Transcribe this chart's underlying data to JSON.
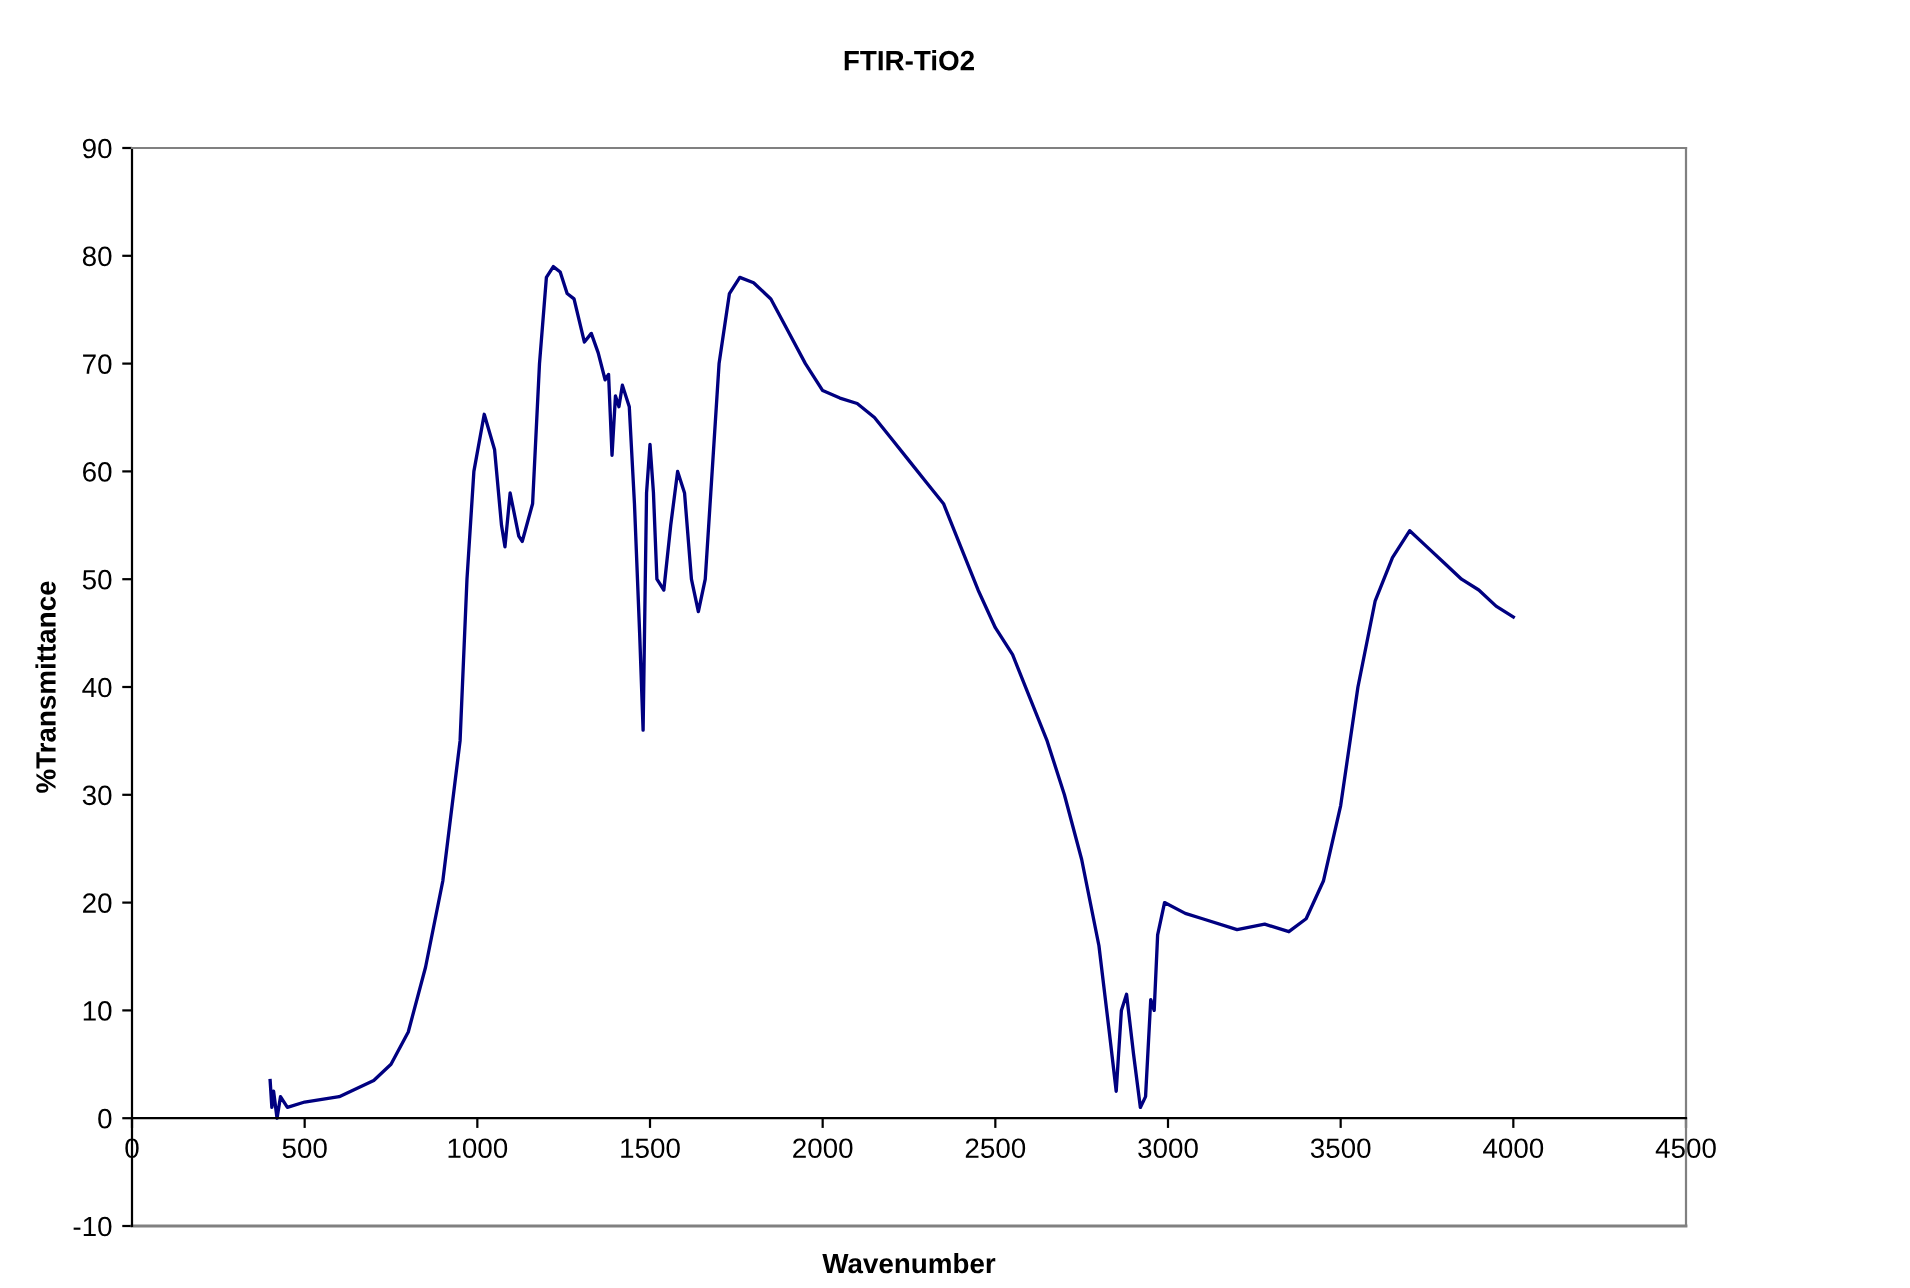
{
  "chart_data": {
    "type": "line",
    "title": "FTIR-TiO2",
    "xlabel": "Wavenumber",
    "ylabel": "%Transmittance",
    "xlim": [
      0,
      4500
    ],
    "xticks": [
      0,
      500,
      1000,
      1500,
      2000,
      2500,
      3000,
      3500,
      4000,
      4500
    ],
    "ylim": [
      -10,
      90
    ],
    "yticks": [
      -10,
      0,
      10,
      20,
      30,
      40,
      50,
      60,
      70,
      80,
      90
    ],
    "grid": false,
    "legend": false,
    "marker": "none",
    "line_style": "solid",
    "series": [
      {
        "color": "#000080",
        "x": [
          400,
          405,
          410,
          420,
          430,
          450,
          500,
          600,
          700,
          750,
          800,
          850,
          900,
          950,
          970,
          990,
          1020,
          1050,
          1070,
          1080,
          1095,
          1120,
          1130,
          1160,
          1180,
          1200,
          1220,
          1240,
          1260,
          1280,
          1310,
          1330,
          1350,
          1370,
          1380,
          1390,
          1400,
          1410,
          1420,
          1440,
          1455,
          1470,
          1480,
          1490,
          1500,
          1510,
          1520,
          1540,
          1560,
          1580,
          1600,
          1620,
          1640,
          1660,
          1680,
          1700,
          1730,
          1760,
          1800,
          1850,
          1900,
          1950,
          2000,
          2050,
          2100,
          2150,
          2200,
          2250,
          2300,
          2350,
          2400,
          2450,
          2500,
          2550,
          2600,
          2650,
          2700,
          2750,
          2800,
          2830,
          2850,
          2865,
          2880,
          2900,
          2920,
          2935,
          2950,
          2960,
          2970,
          2990,
          3050,
          3100,
          3200,
          3280,
          3350,
          3400,
          3450,
          3500,
          3550,
          3600,
          3650,
          3700,
          3750,
          3800,
          3850,
          3900,
          3950,
          4000
        ],
        "values": [
          3.5,
          1,
          2.5,
          0,
          2,
          1,
          1.5,
          2,
          3.5,
          5,
          8,
          14,
          22,
          35,
          50,
          60,
          65.3,
          62,
          55,
          53,
          58,
          54,
          53.5,
          57,
          70,
          78,
          79,
          78.5,
          76.5,
          76,
          72,
          72.8,
          71,
          68.5,
          69,
          61.5,
          67,
          66,
          68,
          66,
          57,
          45,
          36,
          58,
          62.5,
          58,
          50,
          49,
          55,
          60,
          58,
          50,
          47,
          50,
          60,
          70,
          76.5,
          78,
          77.5,
          76,
          73,
          70,
          67.5,
          66.8,
          66.3,
          65,
          63,
          61,
          59,
          57,
          53,
          49,
          45.5,
          43,
          39,
          35,
          30,
          24,
          16,
          8,
          2.5,
          10,
          11.5,
          6,
          1,
          2,
          11,
          10,
          17,
          20,
          19,
          18.5,
          17.5,
          18,
          17.3,
          18.5,
          22,
          29,
          40,
          48,
          52,
          54.5,
          53,
          51.5,
          50,
          49,
          47.5,
          46.5
        ]
      }
    ]
  }
}
